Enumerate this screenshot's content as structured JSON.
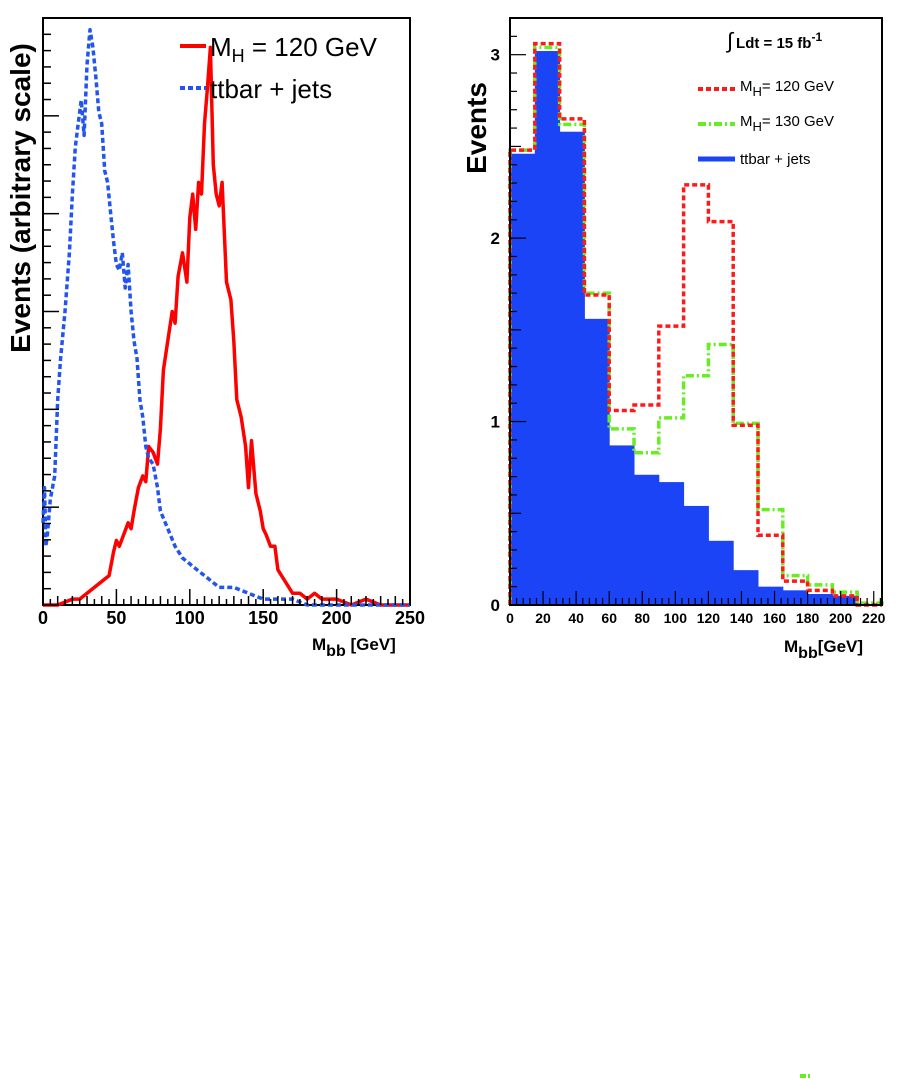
{
  "chart_data": [
    {
      "type": "line",
      "id": "left-panel",
      "title": "",
      "xlabel": {
        "main": "M",
        "sub": "bb",
        "unit": "[GeV]"
      },
      "ylabel": "Events (arbitrary scale)",
      "xlim": [
        0,
        250
      ],
      "ylim": [
        0,
        1.0
      ],
      "x_ticks": [
        0,
        50,
        100,
        150,
        200,
        250
      ],
      "grid": false,
      "legend": "top-right",
      "series": [
        {
          "name": "M_H = 120 GeV",
          "label_main": "M",
          "label_sub": "H",
          "label_rest": " = 120 GeV",
          "color": "#ff0000",
          "style": "solid",
          "x": [
            0,
            10,
            20,
            25,
            30,
            35,
            40,
            45,
            48,
            50,
            52,
            55,
            58,
            60,
            62,
            65,
            68,
            70,
            72,
            75,
            78,
            80,
            82,
            85,
            88,
            90,
            92,
            95,
            98,
            100,
            102,
            104,
            106,
            108,
            110,
            112,
            114,
            116,
            118,
            120,
            122,
            125,
            128,
            130,
            132,
            135,
            138,
            140,
            142,
            145,
            148,
            150,
            152,
            155,
            158,
            160,
            165,
            170,
            175,
            180,
            185,
            190,
            200,
            210,
            220,
            230,
            240,
            250
          ],
          "y": [
            0.0,
            0.0,
            0.01,
            0.01,
            0.02,
            0.03,
            0.04,
            0.05,
            0.09,
            0.11,
            0.1,
            0.12,
            0.14,
            0.13,
            0.16,
            0.2,
            0.22,
            0.21,
            0.27,
            0.26,
            0.24,
            0.3,
            0.4,
            0.45,
            0.5,
            0.48,
            0.56,
            0.6,
            0.55,
            0.66,
            0.7,
            0.64,
            0.72,
            0.7,
            0.82,
            0.88,
            0.95,
            0.75,
            0.7,
            0.68,
            0.72,
            0.55,
            0.52,
            0.45,
            0.35,
            0.32,
            0.27,
            0.2,
            0.28,
            0.19,
            0.16,
            0.13,
            0.12,
            0.1,
            0.1,
            0.06,
            0.04,
            0.02,
            0.02,
            0.01,
            0.02,
            0.01,
            0.01,
            0.0,
            0.01,
            0.0,
            0.0,
            0.0
          ]
        },
        {
          "name": "ttbar + jets",
          "color": "#2255ee",
          "style": "dashed",
          "x": [
            0,
            1,
            2,
            3,
            5,
            8,
            10,
            12,
            15,
            18,
            20,
            22,
            24,
            26,
            28,
            30,
            32,
            34,
            36,
            38,
            40,
            42,
            44,
            46,
            48,
            50,
            52,
            54,
            56,
            58,
            60,
            62,
            64,
            66,
            68,
            70,
            72,
            75,
            78,
            80,
            85,
            90,
            95,
            100,
            105,
            110,
            115,
            120,
            130,
            140,
            150,
            160,
            170,
            180,
            190,
            200,
            250
          ],
          "y": [
            0.14,
            0.2,
            0.1,
            0.12,
            0.18,
            0.22,
            0.35,
            0.42,
            0.5,
            0.6,
            0.7,
            0.78,
            0.82,
            0.86,
            0.8,
            0.92,
            0.98,
            0.95,
            0.9,
            0.84,
            0.82,
            0.74,
            0.72,
            0.67,
            0.62,
            0.58,
            0.57,
            0.6,
            0.54,
            0.58,
            0.5,
            0.45,
            0.42,
            0.35,
            0.32,
            0.27,
            0.25,
            0.24,
            0.2,
            0.16,
            0.13,
            0.1,
            0.08,
            0.07,
            0.06,
            0.05,
            0.04,
            0.03,
            0.03,
            0.02,
            0.01,
            0.01,
            0.01,
            0.0,
            0.0,
            0.0,
            0.0
          ]
        }
      ]
    },
    {
      "type": "bar",
      "id": "right-panel",
      "title": "",
      "xlabel": {
        "main": "M",
        "sub": "bb",
        "unit": "[GeV]"
      },
      "ylabel": "Events",
      "xlim": [
        0,
        225
      ],
      "ylim": [
        0,
        3.2
      ],
      "x_ticks": [
        0,
        20,
        40,
        60,
        80,
        100,
        120,
        140,
        160,
        180,
        200,
        220
      ],
      "y_ticks": [
        0,
        1,
        2,
        3
      ],
      "grid": false,
      "legend": "top-right",
      "luminosity": {
        "prefix": "Ldt = 15 fb",
        "exponent": "-1"
      },
      "bin_edges": [
        0,
        15,
        30,
        45,
        60,
        75,
        90,
        105,
        120,
        135,
        150,
        165,
        180,
        195,
        210,
        225
      ],
      "series": [
        {
          "name": "ttbar + jets",
          "color": "#1a44f5",
          "style": "filled",
          "values": [
            2.46,
            3.02,
            2.58,
            1.56,
            0.87,
            0.71,
            0.67,
            0.54,
            0.35,
            0.19,
            0.1,
            0.08,
            0.06,
            0.05,
            0.0
          ]
        },
        {
          "name": "M_H= 120 GeV",
          "label_main": "M",
          "label_sub": "H",
          "label_rest": "= 120 GeV",
          "color": "#ff1a1a",
          "style": "dashed",
          "values": [
            2.48,
            3.06,
            2.65,
            1.69,
            1.06,
            1.09,
            1.52,
            2.29,
            2.09,
            0.98,
            0.38,
            0.13,
            0.08,
            0.05,
            0.0
          ]
        },
        {
          "name": "M_H= 130 GeV",
          "label_main": "M",
          "label_sub": "H",
          "label_rest": "= 130 GeV",
          "color": "#66ee22",
          "style": "dashdot",
          "values": [
            2.48,
            3.04,
            2.62,
            1.7,
            0.96,
            0.83,
            1.02,
            1.25,
            1.42,
            0.99,
            0.52,
            0.16,
            0.11,
            0.07,
            0.01
          ]
        }
      ]
    }
  ]
}
